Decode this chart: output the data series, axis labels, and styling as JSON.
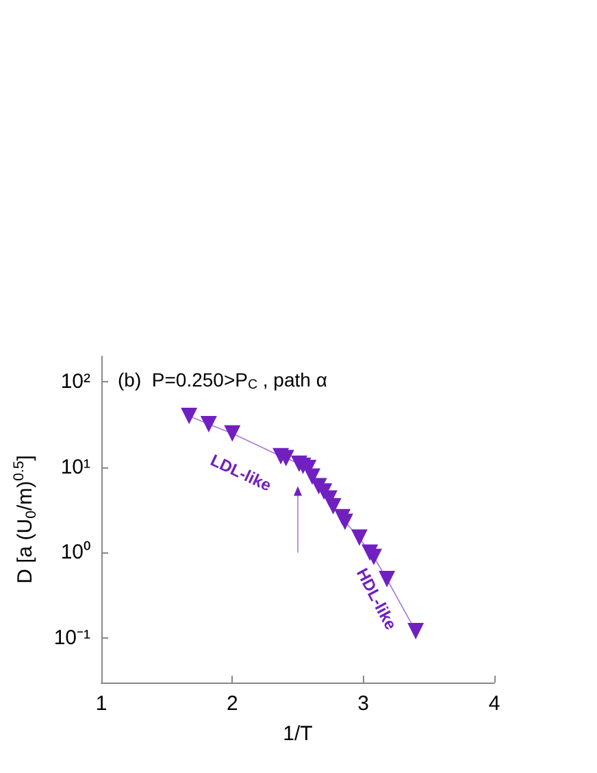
{
  "chart_data": {
    "type": "line",
    "title": "(b)  P=0.250>P$_{C}$ , path α",
    "xlabel": "1/T",
    "ylabel": "D [a (U$_{0}$/m)$^{0.5}$]",
    "x": [
      1.67,
      1.82,
      2.0,
      2.37,
      2.41,
      2.51,
      2.54,
      2.58,
      2.61,
      2.66,
      2.7,
      2.74,
      2.77,
      2.84,
      2.86,
      2.97,
      3.05,
      3.08,
      3.18,
      3.4
    ],
    "values": [
      40,
      32,
      25,
      13.5,
      12.8,
      11,
      10.4,
      9.8,
      7.8,
      6.0,
      5.2,
      4.3,
      3.5,
      2.6,
      2.3,
      1.5,
      1.0,
      0.89,
      0.49,
      0.12
    ],
    "color": "#7020c0",
    "marker": "triangle",
    "log": "y",
    "grid": false,
    "xlim": [
      1,
      4
    ],
    "xticks": [
      1,
      2,
      3,
      4
    ],
    "ylim": [
      0.03,
      200
    ],
    "yticks": [
      {
        "value": 0.1,
        "label": "10⁻¹"
      },
      {
        "value": 1,
        "label": "10⁰"
      },
      {
        "value": 10,
        "label": "10¹"
      },
      {
        "value": 100,
        "label": "10²"
      }
    ],
    "annotations": [
      "LDL-like",
      "HDL-like"
    ]
  }
}
